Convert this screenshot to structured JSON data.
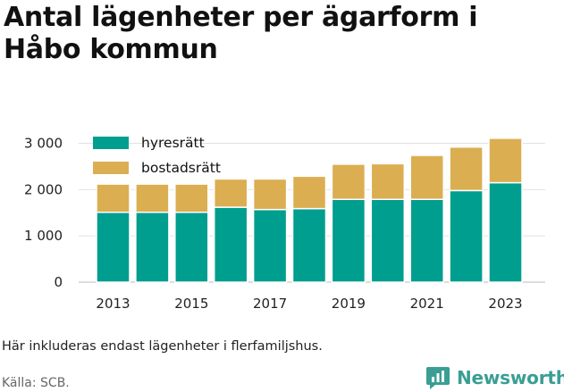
{
  "header": {
    "title": "Antal lägenheter per ägarform i Håbo kommun"
  },
  "footer": {
    "note": "Här inkluderas endast lägenheter i flerfamiljshus.",
    "source": "Källa: SCB.",
    "brand": "Newsworthy"
  },
  "icons": {
    "brand_logo": "newsworthy-chat-bars-icon"
  },
  "chart_data": {
    "type": "bar",
    "stacked": true,
    "x": [
      2013,
      2014,
      2015,
      2016,
      2017,
      2018,
      2019,
      2020,
      2021,
      2022,
      2023
    ],
    "x_tick_labels": [
      "2013",
      "2015",
      "2017",
      "2019",
      "2021",
      "2023"
    ],
    "x_tick_values": [
      2013,
      2015,
      2017,
      2019,
      2021,
      2023
    ],
    "y_ticks": [
      0,
      1000,
      2000,
      3000
    ],
    "y_tick_labels": [
      "0",
      "1 000",
      "2 000",
      "3 000"
    ],
    "ylim": [
      0,
      3300
    ],
    "grid": true,
    "legend_position": "top-left",
    "series": [
      {
        "name": "hyresrätt",
        "color": "#009e8e",
        "values": [
          1510,
          1510,
          1510,
          1620,
          1570,
          1590,
          1790,
          1790,
          1790,
          1980,
          2150
        ]
      },
      {
        "name": "bostadsrätt",
        "color": "#dcae52",
        "values": [
          610,
          610,
          610,
          610,
          660,
          700,
          760,
          770,
          950,
          940,
          960
        ]
      }
    ],
    "title": "Antal lägenheter per ägarform i Håbo kommun",
    "xlabel": "",
    "ylabel": ""
  }
}
